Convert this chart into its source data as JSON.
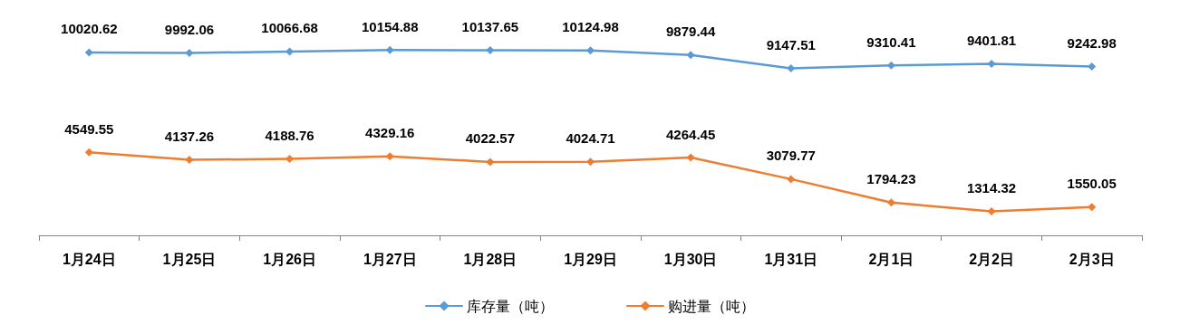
{
  "chart_data": {
    "type": "line",
    "categories": [
      "1月24日",
      "1月25日",
      "1月26日",
      "1月27日",
      "1月28日",
      "1月29日",
      "1月30日",
      "1月31日",
      "2月1日",
      "2月2日",
      "2月3日"
    ],
    "series": [
      {
        "name": "库存量（吨）",
        "color": "#5b9bd5",
        "values": [
          10020.62,
          9992.06,
          10066.68,
          10154.88,
          10137.65,
          10124.98,
          9879.44,
          9147.51,
          9310.41,
          9401.81,
          9242.98
        ]
      },
      {
        "name": "购进量（吨）",
        "color": "#ed7d31",
        "values": [
          4549.55,
          4137.26,
          4188.76,
          4329.16,
          4022.57,
          4024.71,
          4264.45,
          3079.77,
          1794.23,
          1314.32,
          1550.05
        ]
      }
    ],
    "tick_labels": "x",
    "data_labels": true,
    "marker": "diamond",
    "line_style": "solid",
    "grid": false,
    "legend": "bottom"
  }
}
